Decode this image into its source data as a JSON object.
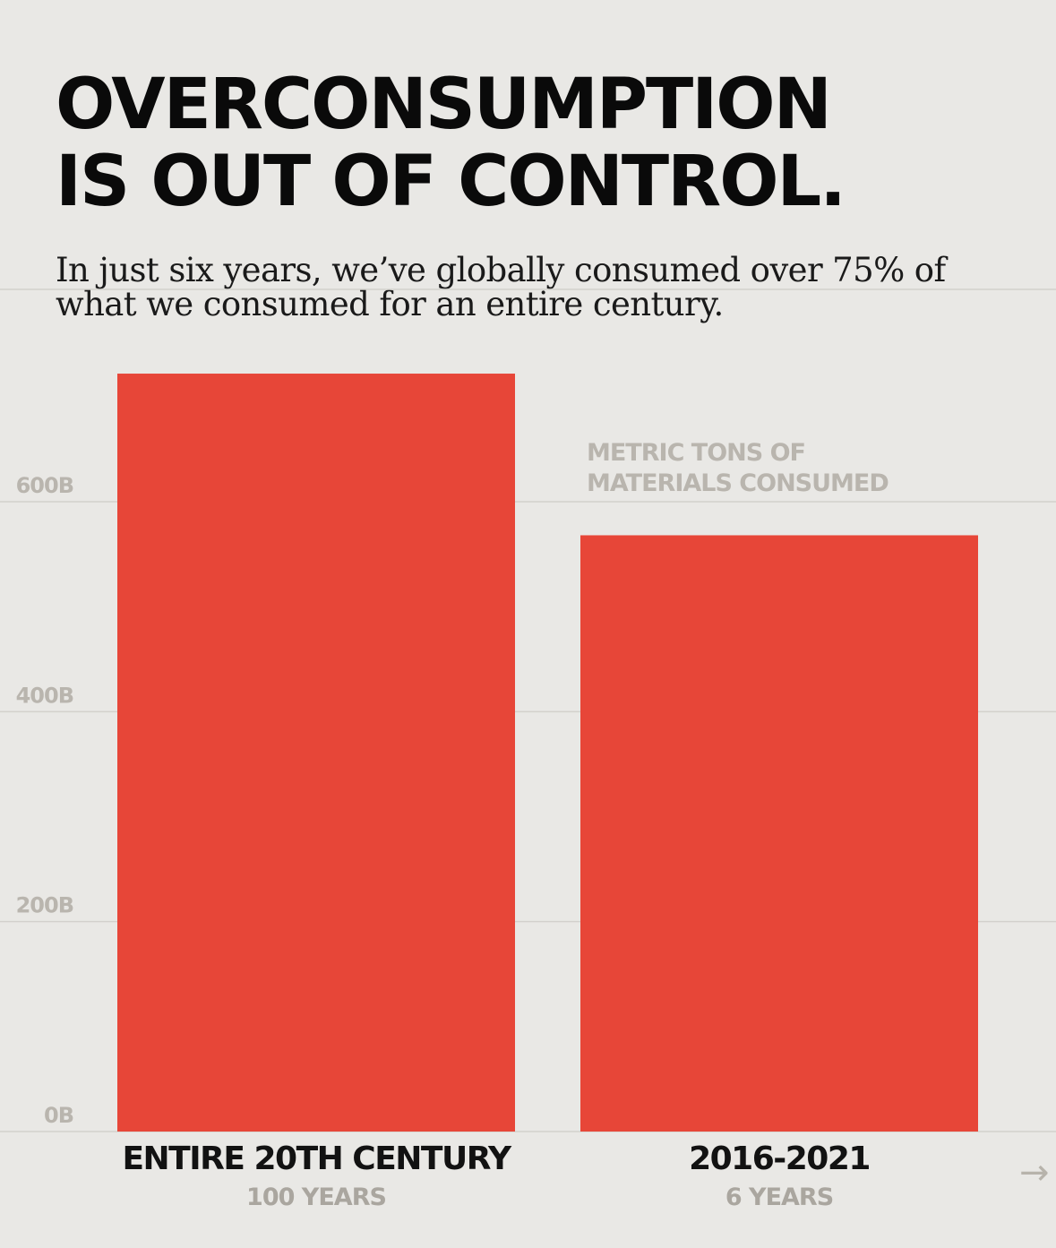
{
  "header": {
    "title_line1": "OVERCONSUMPTION",
    "title_line2": "IS OUT OF CONTROL.",
    "subtitle_line1": "In just six years, we’ve globally consumed over 75% of",
    "subtitle_line2": "what we consumed for an entire century."
  },
  "chart_data": {
    "type": "bar",
    "categories": [
      "ENTIRE 20TH CENTURY",
      "2016-2021"
    ],
    "category_sublabels": [
      "100 YEARS",
      "6 YEARS"
    ],
    "values": [
      722,
      568
    ],
    "unit_label": [
      "METRIC TONS OF",
      "MATERIALS CONSUMED"
    ],
    "yticks": [
      0,
      200,
      400,
      600
    ],
    "ytick_labels": [
      "0B",
      "200B",
      "400B",
      "600B"
    ],
    "ylim": [
      0,
      722
    ],
    "grid": true,
    "bar_color": "#e74638",
    "grid_color": "#d3d1cc",
    "tick_color": "#b9b5ae",
    "label_color": "#121212",
    "sublabel_color": "#aaa69f"
  },
  "footer": {
    "arrow_icon": "→"
  }
}
